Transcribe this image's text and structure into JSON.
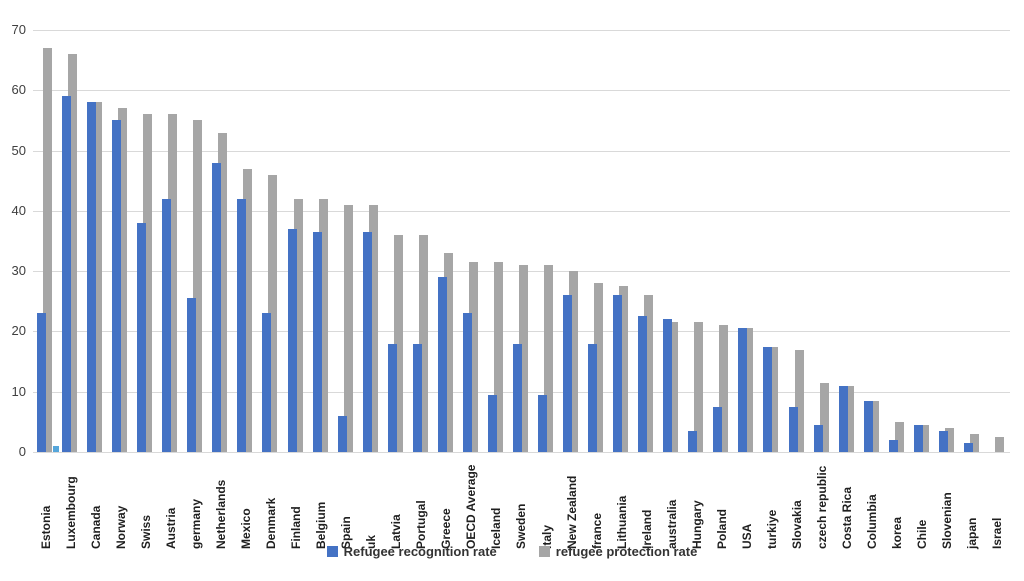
{
  "chart_data": {
    "type": "bar",
    "title": "",
    "xlabel": "",
    "ylabel": "",
    "ylim": [
      0,
      70
    ],
    "yticks": [
      0,
      10,
      20,
      30,
      40,
      50,
      60,
      70
    ],
    "grid": true,
    "legend_position": "bottom",
    "categories": [
      "Estonia",
      "Luxembourg",
      "Canada",
      "Norway",
      "Swiss",
      "Austria",
      "germany",
      "Netherlands",
      "Mexico",
      "Denmark",
      "Finland",
      "Belgium",
      "Spain",
      "uk",
      "Latvia",
      "Portugal",
      "Greece",
      "OECD Average",
      "Iceland",
      "Sweden",
      "Italy",
      "New Zealand",
      "france",
      "Lithuania",
      "Ireland",
      "australia",
      "Hungary",
      "Poland",
      "USA",
      "turkiye",
      "Slovakia",
      "czech republic",
      "Costa Rica",
      "Columbia",
      "korea",
      "Chile",
      "Slovenian",
      "japan",
      "Israel"
    ],
    "series": [
      {
        "name": "Refugee recognition rate",
        "color": "#4472C4",
        "values": [
          23,
          59,
          58,
          55,
          38,
          42,
          25.5,
          48,
          42,
          23,
          37,
          36.5,
          6,
          36.5,
          18,
          18,
          29,
          23,
          9.5,
          18,
          9.5,
          26,
          18,
          26,
          22.5,
          22,
          3.5,
          7.5,
          20.5,
          17.5,
          7.5,
          4.5,
          11,
          8.5,
          2,
          4.5,
          3.5,
          1.5,
          0
        ]
      },
      {
        "name": "refugee protection rate",
        "color": "#A6A6A6",
        "values": [
          67,
          66,
          58,
          57,
          56,
          56,
          55,
          53,
          47,
          46,
          42,
          42,
          41,
          41,
          36,
          36,
          33,
          31.5,
          31.5,
          31,
          31,
          30,
          28,
          27.5,
          26,
          21.5,
          21.5,
          21,
          20.5,
          17.5,
          17,
          11.5,
          11,
          8.5,
          5,
          4.5,
          4,
          3,
          2.5
        ]
      }
    ],
    "extra_bar": {
      "category": "Estonia",
      "value": 1,
      "color": "#55A6DB"
    }
  },
  "colors": {
    "background": "#ffffff",
    "gridline": "#d9d9d9",
    "y_tick_text": "#404040",
    "category_text": "#1f1f1f",
    "series_blue": "#4472C4",
    "series_gray": "#A6A6A6",
    "extra_bar_blue": "#55A6DB"
  }
}
